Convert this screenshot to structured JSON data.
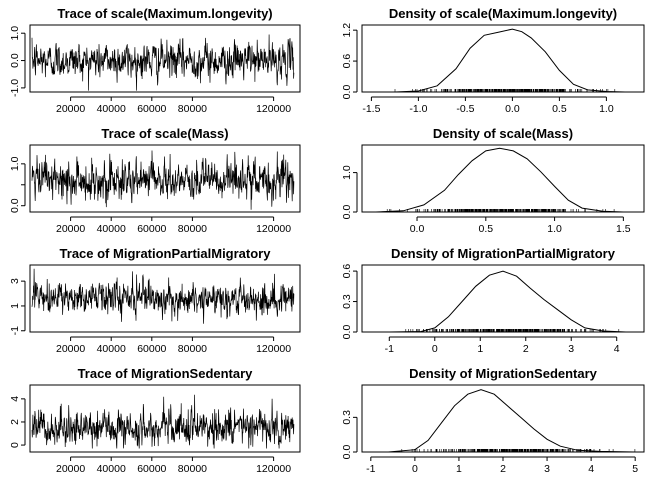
{
  "chart_data": [
    {
      "type": "line",
      "title": "Trace of scale(Maximum.longevity)",
      "x_ticks": [
        20000,
        40000,
        60000,
        80000,
        120000
      ],
      "y_ticks": [
        -1.0,
        0.0,
        1.0
      ],
      "y_tick_labels": [
        "-1.0",
        "0.0",
        "1.0"
      ],
      "xlim": [
        0,
        133000
      ],
      "ylim": [
        -1.15,
        1.3
      ],
      "series": [
        {
          "x_range": [
            1000,
            130000
          ],
          "center": 0.0,
          "spread": 0.3,
          "range": [
            -1.1,
            1.2
          ]
        }
      ]
    },
    {
      "type": "line",
      "title": "Density of scale(Maximum.longevity)",
      "x_ticks": [
        -1.5,
        -1.0,
        -0.5,
        0.0,
        0.5,
        1.0
      ],
      "x_tick_labels": [
        "-1.5",
        "-1.0",
        "-0.5",
        "0.0",
        "0.5",
        "1.0"
      ],
      "y_ticks": [
        0.0,
        0.6,
        1.2
      ],
      "y_tick_labels": [
        "0.0",
        "0.6",
        "1.2"
      ],
      "xlim": [
        -1.6,
        1.4
      ],
      "ylim": [
        0,
        1.3
      ],
      "series": [
        {
          "x": [
            -1.25,
            -1.0,
            -0.8,
            -0.6,
            -0.45,
            -0.3,
            -0.15,
            0.0,
            0.1,
            0.2,
            0.35,
            0.5,
            0.65,
            0.8,
            1.0,
            1.2
          ],
          "y": [
            0.0,
            0.02,
            0.12,
            0.45,
            0.85,
            1.1,
            1.16,
            1.22,
            1.17,
            1.05,
            0.78,
            0.42,
            0.15,
            0.04,
            0.01,
            0.0
          ]
        }
      ],
      "rug_range": [
        -1.25,
        1.2
      ]
    },
    {
      "type": "line",
      "title": "Trace of scale(Mass)",
      "x_ticks": [
        20000,
        40000,
        60000,
        80000,
        120000
      ],
      "y_ticks": [
        0.0,
        0.5,
        1.0
      ],
      "y_tick_labels": [
        "0.0",
        "",
        "1.0"
      ],
      "xlim": [
        0,
        133000
      ],
      "ylim": [
        -0.15,
        1.45
      ],
      "series": [
        {
          "x_range": [
            1000,
            130000
          ],
          "center": 0.6,
          "spread": 0.22,
          "range": [
            -0.1,
            1.35
          ]
        }
      ]
    },
    {
      "type": "line",
      "title": "Density of scale(Mass)",
      "x_ticks": [
        0.0,
        0.5,
        1.0,
        1.5
      ],
      "x_tick_labels": [
        "0.0",
        "0.5",
        "1.0",
        "1.5"
      ],
      "y_ticks": [
        0.0,
        1.0
      ],
      "y_tick_labels": [
        "0.0",
        "1.0"
      ],
      "xlim": [
        -0.4,
        1.65
      ],
      "ylim": [
        0,
        1.7
      ],
      "series": [
        {
          "x": [
            -0.3,
            -0.1,
            0.05,
            0.2,
            0.3,
            0.4,
            0.5,
            0.6,
            0.7,
            0.8,
            0.9,
            1.0,
            1.1,
            1.2,
            1.35,
            1.5
          ],
          "y": [
            0.0,
            0.03,
            0.18,
            0.55,
            0.95,
            1.3,
            1.55,
            1.62,
            1.55,
            1.35,
            1.02,
            0.65,
            0.3,
            0.1,
            0.02,
            0.0
          ]
        }
      ],
      "rug_range": [
        -0.3,
        1.5
      ]
    },
    {
      "type": "line",
      "title": "Trace of MigrationPartialMigratory",
      "x_ticks": [
        20000,
        40000,
        60000,
        80000,
        120000
      ],
      "y_ticks": [
        -1,
        1,
        3
      ],
      "y_tick_labels": [
        "-1",
        "1",
        "3"
      ],
      "xlim": [
        0,
        133000
      ],
      "ylim": [
        -1.1,
        4.3
      ],
      "series": [
        {
          "x_range": [
            1000,
            130000
          ],
          "center": 1.6,
          "spread": 0.6,
          "range": [
            -0.9,
            4.0
          ]
        }
      ]
    },
    {
      "type": "line",
      "title": "Density of MigrationPartialMigratory",
      "x_ticks": [
        -1,
        0,
        1,
        2,
        3,
        4
      ],
      "x_tick_labels": [
        "-1",
        "0",
        "1",
        "2",
        "3",
        "4"
      ],
      "y_ticks": [
        0.0,
        0.3,
        0.6
      ],
      "y_tick_labels": [
        "0.0",
        "0.3",
        "0.6"
      ],
      "xlim": [
        -1.6,
        4.6
      ],
      "ylim": [
        0,
        0.66
      ],
      "series": [
        {
          "x": [
            -1.0,
            -0.3,
            0.0,
            0.3,
            0.6,
            0.9,
            1.2,
            1.5,
            1.8,
            2.1,
            2.4,
            2.7,
            3.0,
            3.3,
            3.7,
            4.2
          ],
          "y": [
            0.0,
            0.005,
            0.04,
            0.15,
            0.3,
            0.45,
            0.56,
            0.6,
            0.55,
            0.43,
            0.32,
            0.22,
            0.12,
            0.04,
            0.01,
            0.0
          ]
        }
      ],
      "rug_range": [
        -1.0,
        4.2
      ]
    },
    {
      "type": "line",
      "title": "Trace of MigrationSedentary",
      "x_ticks": [
        20000,
        40000,
        60000,
        80000,
        120000
      ],
      "y_ticks": [
        0,
        2,
        4
      ],
      "y_tick_labels": [
        "0",
        "2",
        "4"
      ],
      "xlim": [
        0,
        133000
      ],
      "ylim": [
        -0.6,
        5.2
      ],
      "series": [
        {
          "x_range": [
            1000,
            130000
          ],
          "center": 1.5,
          "spread": 0.7,
          "range": [
            -0.3,
            4.7
          ]
        }
      ]
    },
    {
      "type": "line",
      "title": "Density of MigrationSedentary",
      "x_ticks": [
        -1,
        0,
        1,
        2,
        3,
        4,
        5
      ],
      "x_tick_labels": [
        "-1",
        "0",
        "1",
        "2",
        "3",
        "4",
        "5"
      ],
      "y_ticks": [
        0.0,
        0.3
      ],
      "y_tick_labels": [
        "0.0",
        "0.3"
      ],
      "xlim": [
        -1.2,
        5.2
      ],
      "ylim": [
        0,
        0.58
      ],
      "series": [
        {
          "x": [
            -0.6,
            0.0,
            0.3,
            0.6,
            0.9,
            1.2,
            1.5,
            1.8,
            2.1,
            2.4,
            2.7,
            3.0,
            3.3,
            3.7,
            4.2,
            5.0
          ],
          "y": [
            0.0,
            0.02,
            0.1,
            0.25,
            0.4,
            0.5,
            0.54,
            0.5,
            0.4,
            0.3,
            0.2,
            0.11,
            0.05,
            0.015,
            0.005,
            0.0
          ]
        }
      ],
      "rug_range": [
        -0.6,
        5.0
      ]
    }
  ]
}
